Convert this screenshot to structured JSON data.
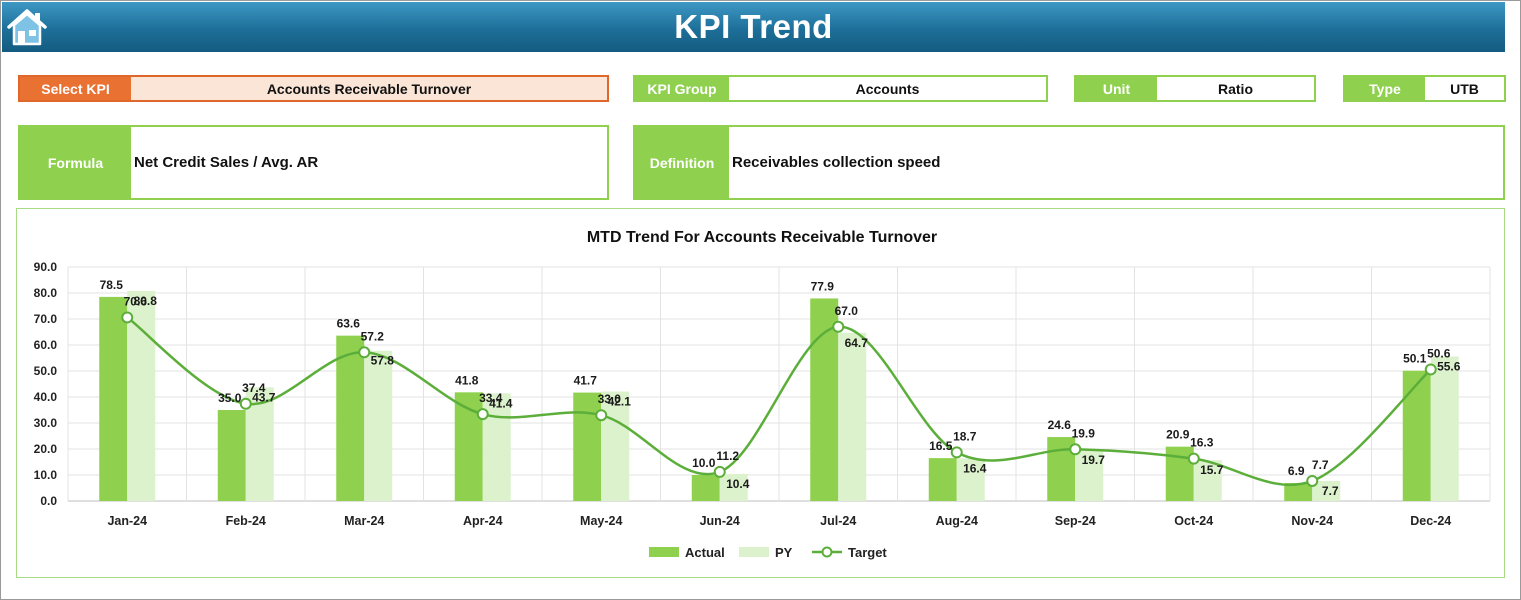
{
  "header": {
    "title": "KPI Trend"
  },
  "fields": {
    "select_kpi": {
      "label": "Select KPI",
      "value": "Accounts Receivable Turnover"
    },
    "kpi_group": {
      "label": "KPI Group",
      "value": "Accounts"
    },
    "unit": {
      "label": "Unit",
      "value": "Ratio"
    },
    "type": {
      "label": "Type",
      "value": "UTB"
    },
    "formula": {
      "label": "Formula",
      "value": "Net Credit Sales / Avg. AR"
    },
    "definition": {
      "label": "Definition",
      "value": "Receivables collection speed"
    }
  },
  "icons": {
    "home": "home-icon"
  },
  "colors": {
    "actual": "#8fd14f",
    "py": "#dcf2cd",
    "target": "#5cae3a",
    "header": "#1d6f99",
    "kpi_label": "#e97132"
  },
  "chart_data": {
    "type": "bar",
    "title": "MTD Trend For Accounts Receivable Turnover",
    "categories": [
      "Jan-24",
      "Feb-24",
      "Mar-24",
      "Apr-24",
      "May-24",
      "Jun-24",
      "Jul-24",
      "Aug-24",
      "Sep-24",
      "Oct-24",
      "Nov-24",
      "Dec-24"
    ],
    "series": [
      {
        "name": "Actual",
        "kind": "bar",
        "values": [
          78.5,
          35.0,
          63.6,
          41.8,
          41.7,
          10.0,
          77.9,
          16.5,
          24.6,
          20.9,
          6.9,
          50.1
        ]
      },
      {
        "name": "PY",
        "kind": "bar",
        "values": [
          80.8,
          43.7,
          57.8,
          41.4,
          42.1,
          10.4,
          64.7,
          16.4,
          19.7,
          15.7,
          7.7,
          55.6
        ]
      },
      {
        "name": "Target",
        "kind": "line",
        "smooth": true,
        "values": [
          70.6,
          37.4,
          57.2,
          33.4,
          33.0,
          11.2,
          67.0,
          18.7,
          19.9,
          16.3,
          7.7,
          50.6
        ]
      }
    ],
    "yticks": [
      "90.0",
      "80.0",
      "70.0",
      "60.0",
      "50.0",
      "40.0",
      "30.0",
      "20.0",
      "10.0",
      "0.0"
    ],
    "ylim": [
      0,
      90
    ],
    "grid": true,
    "legend": "bottom"
  }
}
